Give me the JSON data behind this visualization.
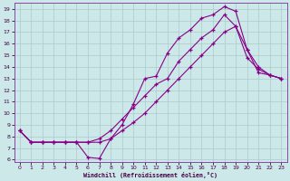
{
  "bg_color": "#cce8e8",
  "grid_color": "#aacccc",
  "line_color": "#880088",
  "xlabel": "Windchill (Refroidissement éolien,°C)",
  "xlim": [
    -0.5,
    23.5
  ],
  "ylim": [
    5.8,
    19.5
  ],
  "xticks": [
    0,
    1,
    2,
    3,
    4,
    5,
    6,
    7,
    8,
    9,
    10,
    11,
    12,
    13,
    14,
    15,
    16,
    17,
    18,
    19,
    20,
    21,
    22,
    23
  ],
  "yticks": [
    6,
    7,
    8,
    9,
    10,
    11,
    12,
    13,
    14,
    15,
    16,
    17,
    18,
    19
  ],
  "curve1_x": [
    0,
    1,
    2,
    3,
    4,
    5,
    6,
    7,
    8,
    9,
    10,
    11,
    12,
    13,
    14,
    15,
    16,
    17,
    18,
    19,
    20,
    21,
    22,
    23
  ],
  "curve1_y": [
    8.5,
    7.5,
    7.5,
    7.5,
    7.5,
    7.5,
    7.5,
    7.8,
    8.5,
    9.5,
    10.5,
    11.5,
    12.5,
    13.0,
    14.5,
    15.5,
    16.5,
    17.2,
    18.5,
    17.5,
    15.5,
    13.5,
    13.3,
    13.0
  ],
  "curve2_x": [
    0,
    1,
    2,
    3,
    4,
    5,
    6,
    7,
    8,
    9,
    10,
    11,
    12,
    13,
    14,
    15,
    16,
    17,
    18,
    19,
    20,
    21,
    22,
    23
  ],
  "curve2_y": [
    8.5,
    7.5,
    7.5,
    7.5,
    7.5,
    7.5,
    6.2,
    6.1,
    7.8,
    9.0,
    10.8,
    13.0,
    13.2,
    15.2,
    16.5,
    17.2,
    18.2,
    18.5,
    19.2,
    18.8,
    15.5,
    14.0,
    13.3,
    13.0
  ],
  "curve3_x": [
    0,
    1,
    2,
    3,
    4,
    5,
    6,
    7,
    8,
    9,
    10,
    11,
    12,
    13,
    14,
    15,
    16,
    17,
    18,
    19,
    20,
    21,
    22,
    23
  ],
  "curve3_y": [
    8.5,
    7.5,
    7.5,
    7.5,
    7.5,
    7.5,
    7.5,
    7.5,
    7.8,
    8.5,
    9.2,
    10.0,
    11.0,
    12.0,
    13.0,
    14.0,
    15.0,
    16.0,
    17.0,
    17.5,
    14.8,
    13.8,
    13.3,
    13.0
  ]
}
